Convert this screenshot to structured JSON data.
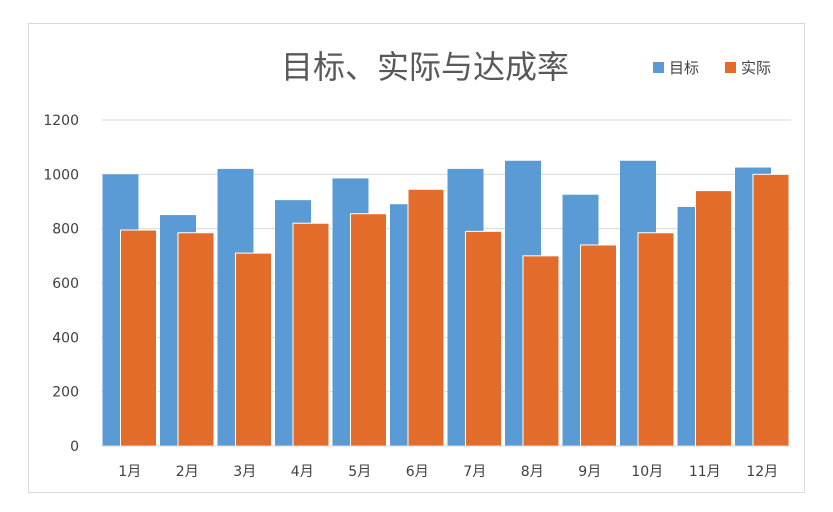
{
  "chart_data": {
    "type": "bar",
    "title": "目标、实际与达成率",
    "categories": [
      "1月",
      "2月",
      "3月",
      "4月",
      "5月",
      "6月",
      "7月",
      "8月",
      "9月",
      "10月",
      "11月",
      "12月"
    ],
    "series": [
      {
        "name": "目标",
        "color": "#5B9BD5",
        "values": [
          1000,
          850,
          1020,
          905,
          985,
          890,
          1020,
          1050,
          925,
          1050,
          880,
          1025
        ]
      },
      {
        "name": "实际",
        "color": "#E36C2A",
        "values": [
          795,
          785,
          710,
          820,
          855,
          945,
          790,
          700,
          740,
          785,
          940,
          1000
        ]
      }
    ],
    "yticks": [
      "0",
      "200",
      "400",
      "600",
      "800",
      "1000",
      "1200"
    ],
    "ylim": [
      0,
      1200
    ],
    "grid": true,
    "legend_position": "top-right"
  }
}
